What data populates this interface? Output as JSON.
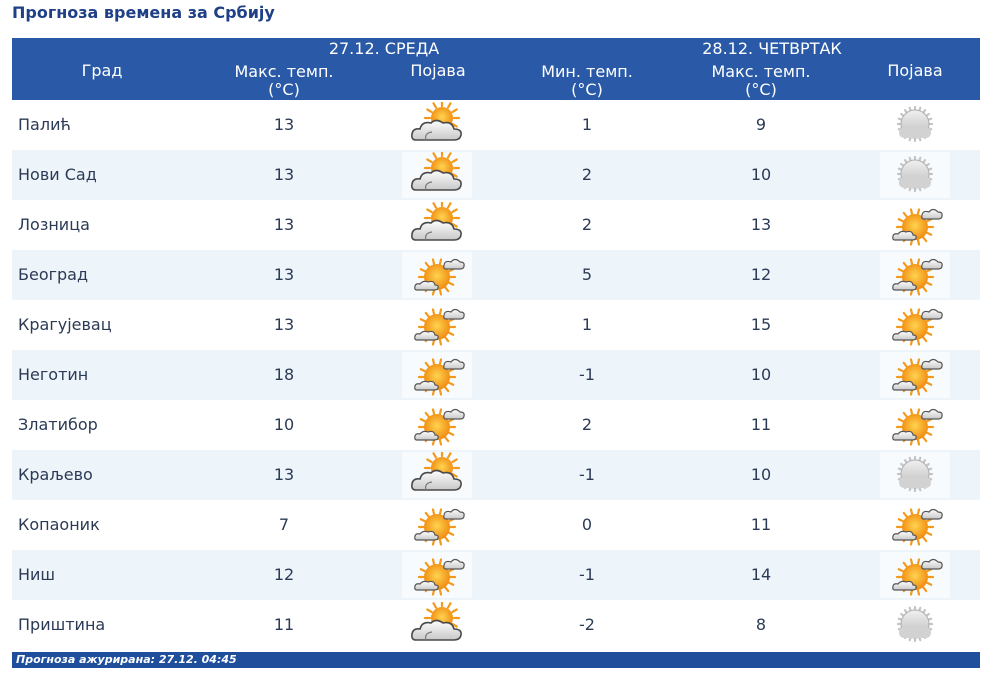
{
  "page": {
    "title": "Прогноза времена за Србију"
  },
  "header": {
    "city": "Град",
    "day1": {
      "date": "27.12. СРЕДА",
      "max": "Макс. темп.",
      "unit": "(°C)",
      "phenomenon": "Појава"
    },
    "day2": {
      "date": "28.12. ЧЕТВРТАК",
      "min": "Мин. темп.",
      "min_unit": "(°C)",
      "max": "Макс. темп.",
      "max_unit": "(°C)",
      "phenomenon": "Појава"
    }
  },
  "rows": [
    {
      "city": "Палић",
      "max1": "13",
      "icon1": "partly-cloudy-icon",
      "min2": "1",
      "max2": "9",
      "icon2": "overcast-icon"
    },
    {
      "city": "Нови Сад",
      "max1": "13",
      "icon1": "partly-cloudy-icon",
      "min2": "2",
      "max2": "10",
      "icon2": "overcast-icon"
    },
    {
      "city": "Лозница",
      "max1": "13",
      "icon1": "partly-cloudy-icon",
      "min2": "2",
      "max2": "13",
      "icon2": "mostly-sunny-icon"
    },
    {
      "city": "Београд",
      "max1": "13",
      "icon1": "mostly-sunny-icon",
      "min2": "5",
      "max2": "12",
      "icon2": "mostly-sunny-icon"
    },
    {
      "city": "Крагујевац",
      "max1": "13",
      "icon1": "mostly-sunny-icon",
      "min2": "1",
      "max2": "15",
      "icon2": "mostly-sunny-icon"
    },
    {
      "city": "Неготин",
      "max1": "18",
      "icon1": "mostly-sunny-icon",
      "min2": "-1",
      "max2": "10",
      "icon2": "mostly-sunny-icon"
    },
    {
      "city": "Златибор",
      "max1": "10",
      "icon1": "mostly-sunny-icon",
      "min2": "2",
      "max2": "11",
      "icon2": "mostly-sunny-icon"
    },
    {
      "city": "Краљево",
      "max1": "13",
      "icon1": "partly-cloudy-icon",
      "min2": "-1",
      "max2": "10",
      "icon2": "overcast-icon"
    },
    {
      "city": "Копаоник",
      "max1": "7",
      "icon1": "mostly-sunny-icon",
      "min2": "0",
      "max2": "11",
      "icon2": "mostly-sunny-icon"
    },
    {
      "city": "Ниш",
      "max1": "12",
      "icon1": "mostly-sunny-icon",
      "min2": "-1",
      "max2": "14",
      "icon2": "mostly-sunny-icon"
    },
    {
      "city": "Приштина",
      "max1": "11",
      "icon1": "partly-cloudy-icon",
      "min2": "-2",
      "max2": "8",
      "icon2": "overcast-icon"
    }
  ],
  "footer": {
    "updated": "Прогноза ажурирана:  27.12.  04:45"
  },
  "colors": {
    "header_bg": "#2a5aa7",
    "alt_row": "#edf4fa",
    "title": "#1f3f86",
    "sun": "#f7a21b",
    "cloud": "#d6d6d6"
  }
}
